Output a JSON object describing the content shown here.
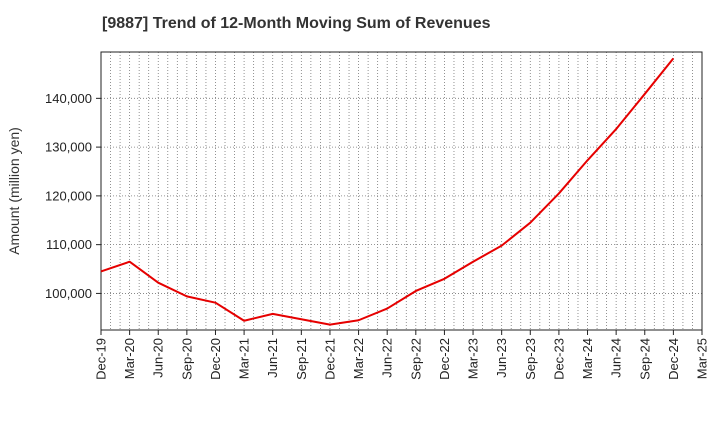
{
  "chart_data": {
    "type": "line",
    "title": "[9887]  Trend of 12-Month Moving Sum of Revenues",
    "xlabel": "",
    "ylabel": "Amount (million yen)",
    "x_tick_labels": [
      "Dec-19",
      "Mar-20",
      "Jun-20",
      "Sep-20",
      "Dec-20",
      "Mar-21",
      "Jun-21",
      "Sep-21",
      "Dec-21",
      "Mar-22",
      "Jun-22",
      "Sep-22",
      "Dec-22",
      "Mar-23",
      "Jun-23",
      "Sep-23",
      "Dec-23",
      "Mar-24",
      "Jun-24",
      "Sep-24",
      "Dec-24",
      "Mar-25"
    ],
    "y_tick_labels": [
      "100,000",
      "110,000",
      "120,000",
      "130,000",
      "140,000"
    ],
    "y_ticks": [
      100000,
      110000,
      120000,
      130000,
      140000
    ],
    "ylim": [
      92500,
      149500
    ],
    "grid": true,
    "line_color": "#e60000",
    "series": [
      {
        "name": "",
        "x": [
          "Dec-19",
          "Mar-20",
          "Jun-20",
          "Sep-20",
          "Dec-20",
          "Mar-21",
          "Jun-21",
          "Sep-21",
          "Dec-21",
          "Mar-22",
          "Jun-22",
          "Sep-22",
          "Dec-22",
          "Mar-23",
          "Jun-23",
          "Sep-23",
          "Dec-23",
          "Mar-24",
          "Jun-24",
          "Sep-24",
          "Dec-24"
        ],
        "values": [
          104500,
          106500,
          102200,
          99400,
          98100,
          94400,
          95800,
          94700,
          93600,
          94500,
          96900,
          100500,
          103000,
          106500,
          109800,
          114500,
          120500,
          127300,
          133700,
          140900,
          148200
        ]
      }
    ]
  }
}
